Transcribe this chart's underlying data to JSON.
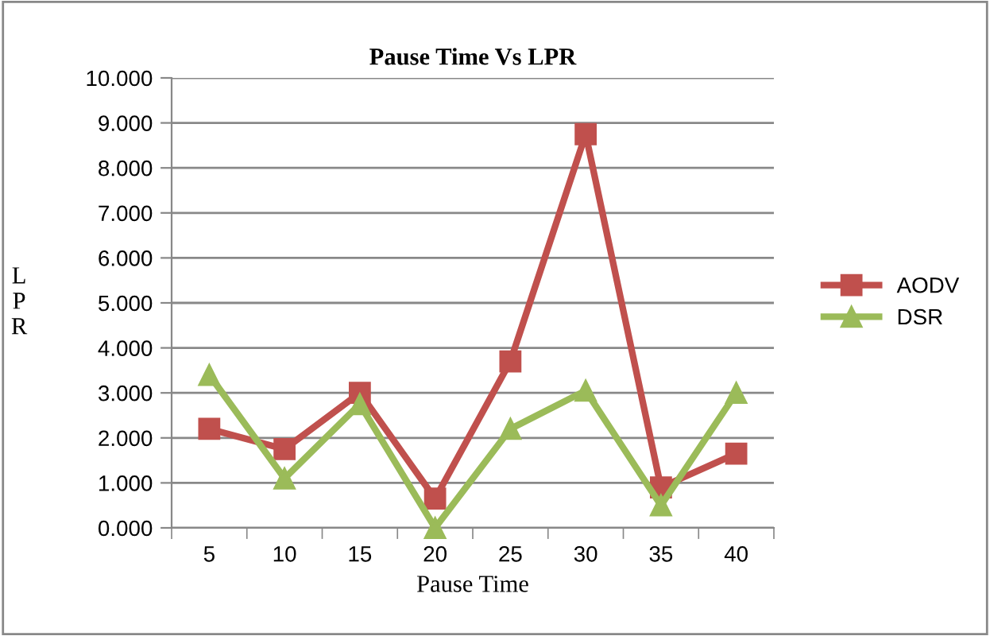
{
  "chart_data": {
    "type": "line",
    "title": "Pause Time Vs LPR",
    "xlabel": "Pause Time",
    "ylabel": "L\nP\nR",
    "categories": [
      "5",
      "10",
      "15",
      "20",
      "25",
      "30",
      "35",
      "40"
    ],
    "series": [
      {
        "name": "AODV",
        "color": "#c0504d",
        "marker": "square",
        "values": [
          2.2,
          1.75,
          3.0,
          0.65,
          3.7,
          8.75,
          0.9,
          1.65
        ]
      },
      {
        "name": "DSR",
        "color": "#9bbb59",
        "marker": "triangle",
        "values": [
          3.4,
          1.1,
          2.75,
          0.0,
          2.2,
          3.05,
          0.5,
          3.0
        ]
      }
    ],
    "ylim": [
      0,
      10
    ],
    "yticks": [
      {
        "value": 0,
        "label": "0.000"
      },
      {
        "value": 1,
        "label": "1.000"
      },
      {
        "value": 2,
        "label": "2.000"
      },
      {
        "value": 3,
        "label": "3.000"
      },
      {
        "value": 4,
        "label": "4.000"
      },
      {
        "value": 5,
        "label": "5.000"
      },
      {
        "value": 6,
        "label": "6.000"
      },
      {
        "value": 7,
        "label": "7.000"
      },
      {
        "value": 8,
        "label": "8.000"
      },
      {
        "value": 9,
        "label": "9.000"
      },
      {
        "value": 10,
        "label": "10.000"
      }
    ],
    "grid": "y",
    "legend": "right"
  }
}
